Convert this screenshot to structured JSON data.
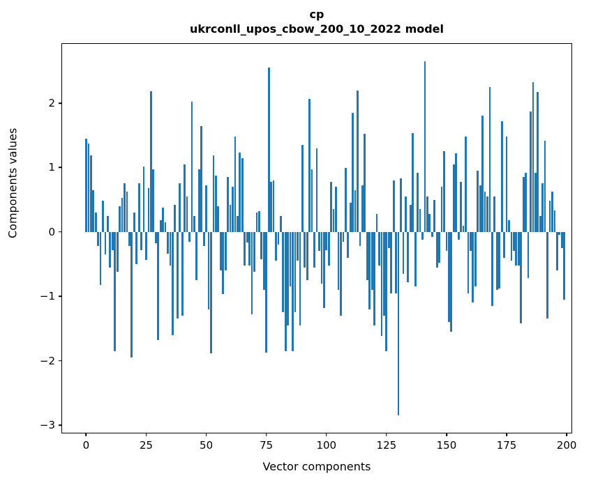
{
  "title_line1": "cp",
  "title_line2": "ukrconll_upos_cbow_200_10_2022 model",
  "chart_data": {
    "type": "bar",
    "title": "cp\nukrconll_upos_cbow_200_10_2022 model",
    "xlabel": "Vector components",
    "ylabel": "Components values",
    "bar_color": "#1f77b4",
    "grid": false,
    "legend": false,
    "xlim": [
      -10,
      202
    ],
    "ylim": [
      -3.12,
      2.92
    ],
    "xticks": [
      0,
      25,
      50,
      75,
      100,
      125,
      150,
      175,
      200
    ],
    "yticks": [
      -3,
      -2,
      -1,
      0,
      1,
      2
    ],
    "x_start": 0,
    "values": [
      1.45,
      1.37,
      1.19,
      0.65,
      0.3,
      -0.22,
      -0.83,
      0.48,
      -0.35,
      0.25,
      -0.55,
      -0.28,
      -1.85,
      -0.62,
      0.4,
      0.53,
      0.76,
      0.62,
      -0.22,
      -1.95,
      0.3,
      -0.5,
      0.76,
      -0.28,
      1.02,
      -0.44,
      0.68,
      2.18,
      0.97,
      -0.18,
      -1.68,
      0.18,
      0.38,
      0.15,
      -0.34,
      -0.52,
      -1.6,
      0.42,
      -1.35,
      0.76,
      -1.3,
      1.05,
      0.55,
      -0.15,
      2.02,
      0.25,
      -0.75,
      0.97,
      1.64,
      -0.22,
      0.72,
      -1.2,
      -1.89,
      1.19,
      0.87,
      0.4,
      -0.6,
      -0.97,
      -0.6,
      0.85,
      0.42,
      0.7,
      1.48,
      0.25,
      1.23,
      1.15,
      -0.52,
      -0.17,
      -0.52,
      -1.28,
      -0.62,
      0.3,
      0.32,
      -0.42,
      -0.9,
      -1.88,
      2.55,
      0.78,
      0.8,
      -0.45,
      -0.2,
      0.25,
      -1.25,
      -1.85,
      -1.45,
      -0.85,
      -1.85,
      -1.25,
      -0.45,
      -1.45,
      1.35,
      -0.55,
      -0.75,
      2.07,
      0.97,
      -0.55,
      1.3,
      -0.3,
      -0.8,
      -1.18,
      -0.28,
      -0.52,
      0.78,
      0.35,
      0.7,
      -0.9,
      -1.3,
      -0.15,
      0.99,
      -0.4,
      0.45,
      1.85,
      0.65,
      2.2,
      -0.22,
      0.72,
      1.52,
      -0.75,
      -1.2,
      -0.9,
      -1.45,
      0.28,
      -0.52,
      -1.62,
      -1.3,
      -1.85,
      -0.25,
      -0.95,
      0.8,
      -0.95,
      -2.85,
      0.83,
      -0.65,
      0.55,
      -0.78,
      0.42,
      1.53,
      -0.85,
      0.92,
      0.35,
      -0.12,
      2.65,
      0.55,
      0.28,
      -0.08,
      0.5,
      -0.55,
      -0.48,
      0.7,
      1.25,
      -0.3,
      -1.4,
      -1.55,
      1.05,
      1.22,
      -0.12,
      0.78,
      0.1,
      1.48,
      -0.95,
      -0.3,
      -1.1,
      -0.85,
      0.95,
      0.72,
      1.8,
      0.62,
      0.55,
      2.25,
      -1.15,
      0.55,
      -0.9,
      -0.88,
      1.72,
      -0.4,
      1.48,
      0.18,
      -0.45,
      -0.3,
      -0.52,
      -0.52,
      -1.42,
      0.85,
      0.92,
      -0.72,
      1.87,
      2.32,
      0.92,
      2.17,
      0.25,
      0.76,
      1.42,
      -1.34,
      0.48,
      0.62,
      0.33,
      -0.6,
      -0.05,
      -0.25,
      -1.05
    ]
  }
}
